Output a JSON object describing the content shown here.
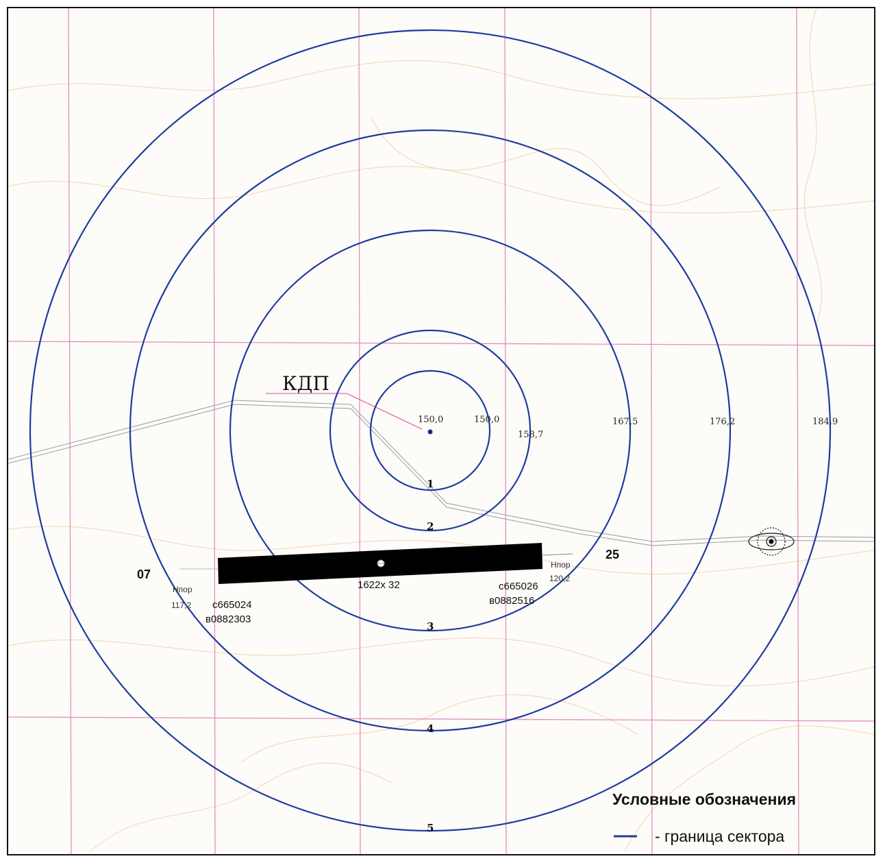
{
  "control_tower": {
    "label": "КДП",
    "elevation": "150,0"
  },
  "rings": [
    {
      "sector": "1",
      "elevation": "150,0"
    },
    {
      "sector": "2",
      "elevation": "158,7"
    },
    {
      "sector": "3",
      "elevation": "167,5"
    },
    {
      "sector": "4",
      "elevation": "176,2"
    },
    {
      "sector": "5",
      "elevation": "184,9"
    }
  ],
  "runway": {
    "dimensions": "1622x 32",
    "west": {
      "designator": "07",
      "threshold_label": "Hпор",
      "threshold_elevation": "117,2",
      "coord_north": "с665024",
      "coord_east": "в0882303"
    },
    "east": {
      "designator": "25",
      "threshold_label": "Hпор",
      "threshold_elevation": "120,2",
      "coord_north": "с665026",
      "coord_east": "в0882516"
    }
  },
  "legend": {
    "title": "Условные обозначения",
    "item_label": "- граница сектора",
    "item_color": "#1f3a9e"
  },
  "colors": {
    "ring": "#1f3a9e",
    "grid": "#e07ab6",
    "contour": "#efc9a0",
    "runway": "#000000"
  }
}
